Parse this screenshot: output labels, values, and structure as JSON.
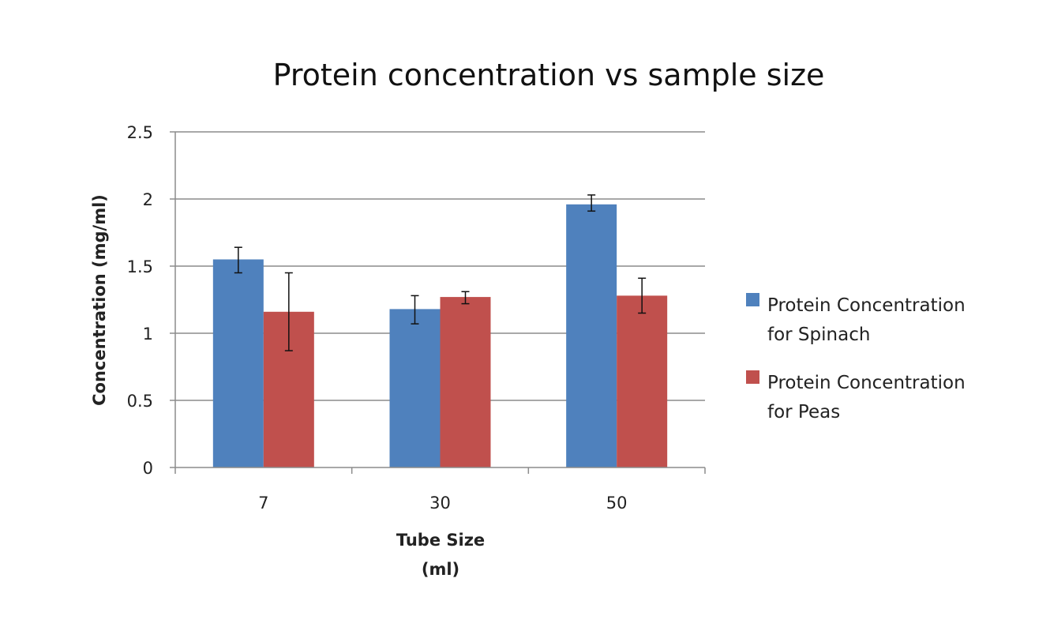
{
  "chart_data": {
    "type": "bar",
    "title": "Protein concentration vs sample size",
    "xlabel": [
      "Tube Size",
      "(ml)"
    ],
    "ylabel": "Concentration (mg/ml)",
    "categories": [
      "7",
      "30",
      "50"
    ],
    "ylim": [
      0,
      2.5
    ],
    "yticks": [
      "0",
      "0.5",
      "1",
      "1.5",
      "2",
      "2.5"
    ],
    "ytick_values": [
      0,
      0.5,
      1,
      1.5,
      2,
      2.5
    ],
    "grid": true,
    "legend_position": "right",
    "series": [
      {
        "name": [
          "Protein Concentration",
          "for Spinach"
        ],
        "color": "#4f81bd",
        "values": [
          1.55,
          1.18,
          1.96
        ],
        "error_high": [
          1.64,
          1.28,
          2.03
        ],
        "error_low": [
          1.45,
          1.07,
          1.91
        ]
      },
      {
        "name": [
          "Protein Concentration",
          "for Peas"
        ],
        "color": "#c0504d",
        "values": [
          1.16,
          1.27,
          1.28
        ],
        "error_high": [
          1.45,
          1.31,
          1.41
        ],
        "error_low": [
          0.87,
          1.22,
          1.15
        ]
      }
    ]
  }
}
